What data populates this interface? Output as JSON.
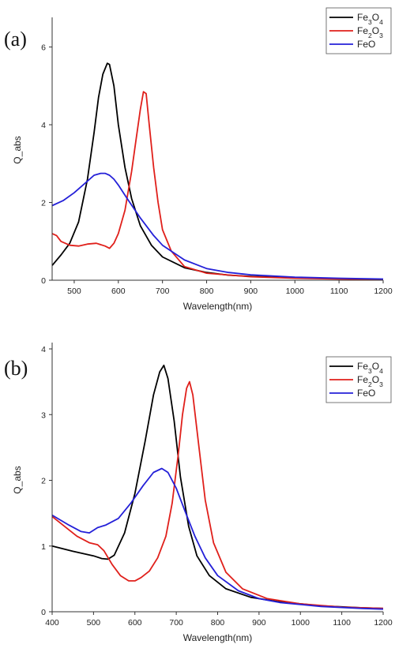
{
  "chart_data": [
    {
      "type": "line",
      "panel_label": "(a)",
      "xlabel": "Wavelength(nm)",
      "ylabel": "Q_abs",
      "xlim": [
        450,
        1200
      ],
      "ylim": [
        0,
        6.6
      ],
      "xticks": [
        500,
        600,
        700,
        800,
        900,
        1000,
        1100,
        1200
      ],
      "yticks": [
        0,
        2,
        4,
        6
      ],
      "legend_position": "top-right",
      "series": [
        {
          "name": "Fe3O4",
          "color": "#000000",
          "x": [
            450,
            470,
            490,
            510,
            530,
            545,
            555,
            565,
            575,
            580,
            590,
            600,
            615,
            630,
            650,
            675,
            700,
            750,
            800,
            850,
            900,
            1000,
            1100,
            1200
          ],
          "y": [
            0.38,
            0.65,
            0.95,
            1.5,
            2.6,
            3.8,
            4.7,
            5.3,
            5.58,
            5.55,
            5.0,
            4.0,
            2.9,
            2.1,
            1.4,
            0.9,
            0.6,
            0.32,
            0.2,
            0.13,
            0.1,
            0.06,
            0.04,
            0.02
          ]
        },
        {
          "name": "Fe2O3",
          "color": "#e0201b",
          "x": [
            450,
            460,
            470,
            490,
            510,
            530,
            550,
            570,
            580,
            590,
            600,
            615,
            630,
            640,
            650,
            657,
            663,
            670,
            680,
            690,
            700,
            720,
            750,
            800,
            900,
            1000,
            1100,
            1200
          ],
          "y": [
            1.2,
            1.15,
            1.0,
            0.9,
            0.88,
            0.93,
            0.95,
            0.88,
            0.82,
            0.95,
            1.2,
            1.8,
            2.8,
            3.6,
            4.4,
            4.85,
            4.8,
            4.0,
            2.9,
            2.0,
            1.3,
            0.75,
            0.35,
            0.18,
            0.09,
            0.05,
            0.03,
            0.02
          ]
        },
        {
          "name": "FeO",
          "color": "#2420d8",
          "x": [
            450,
            475,
            500,
            525,
            545,
            560,
            570,
            580,
            590,
            600,
            620,
            650,
            680,
            700,
            750,
            800,
            850,
            900,
            1000,
            1100,
            1200
          ],
          "y": [
            1.92,
            2.05,
            2.25,
            2.5,
            2.7,
            2.75,
            2.75,
            2.7,
            2.6,
            2.45,
            2.1,
            1.6,
            1.15,
            0.9,
            0.52,
            0.3,
            0.2,
            0.14,
            0.08,
            0.05,
            0.03
          ]
        }
      ]
    },
    {
      "type": "line",
      "panel_label": "(b)",
      "xlabel": "Wavelength(nm)",
      "ylabel": "Q_abs",
      "xlim": [
        400,
        1200
      ],
      "ylim": [
        0,
        4.0
      ],
      "xticks": [
        400,
        500,
        600,
        700,
        800,
        900,
        1000,
        1100,
        1200
      ],
      "yticks": [
        0,
        1,
        2,
        3,
        4
      ],
      "legend_position": "top-right",
      "series": [
        {
          "name": "Fe3O4",
          "color": "#000000",
          "x": [
            400,
            450,
            500,
            520,
            535,
            550,
            575,
            600,
            625,
            645,
            660,
            670,
            680,
            695,
            710,
            730,
            750,
            780,
            820,
            880,
            950,
            1050,
            1150,
            1200
          ],
          "y": [
            1.0,
            0.92,
            0.85,
            0.81,
            0.8,
            0.86,
            1.2,
            1.8,
            2.6,
            3.3,
            3.65,
            3.75,
            3.55,
            2.9,
            2.05,
            1.3,
            0.85,
            0.55,
            0.35,
            0.22,
            0.15,
            0.09,
            0.06,
            0.05
          ]
        },
        {
          "name": "Fe2O3",
          "color": "#e0201b",
          "x": [
            400,
            430,
            460,
            490,
            510,
            525,
            545,
            565,
            585,
            600,
            615,
            635,
            655,
            675,
            690,
            705,
            715,
            725,
            732,
            740,
            755,
            770,
            790,
            820,
            860,
            920,
            1000,
            1100,
            1200
          ],
          "y": [
            1.45,
            1.3,
            1.15,
            1.05,
            1.02,
            0.93,
            0.72,
            0.55,
            0.47,
            0.47,
            0.52,
            0.62,
            0.82,
            1.15,
            1.65,
            2.4,
            3.0,
            3.4,
            3.5,
            3.3,
            2.5,
            1.7,
            1.05,
            0.6,
            0.35,
            0.2,
            0.12,
            0.07,
            0.05
          ]
        },
        {
          "name": "FeO",
          "color": "#2420d8",
          "x": [
            400,
            440,
            470,
            490,
            510,
            530,
            560,
            590,
            620,
            645,
            665,
            680,
            700,
            720,
            745,
            770,
            800,
            850,
            900,
            950,
            1050,
            1150,
            1200
          ],
          "y": [
            1.47,
            1.32,
            1.22,
            1.2,
            1.28,
            1.32,
            1.42,
            1.65,
            1.92,
            2.12,
            2.18,
            2.12,
            1.88,
            1.55,
            1.15,
            0.82,
            0.55,
            0.32,
            0.2,
            0.14,
            0.08,
            0.05,
            0.04
          ]
        }
      ]
    }
  ]
}
